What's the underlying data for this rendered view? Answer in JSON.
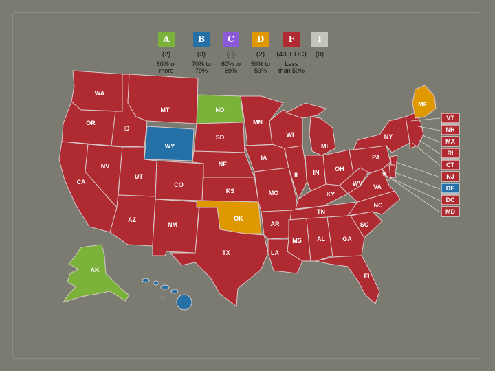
{
  "colors": {
    "A": "#7ab23a",
    "B": "#2670a8",
    "C": "#8a5ad8",
    "D": "#e09800",
    "F": "#b02a32",
    "I": "#c4c4bc",
    "background": "#7b7b72"
  },
  "legend": [
    {
      "grade": "A",
      "count": "(2)",
      "range": "80% or\nmore"
    },
    {
      "grade": "B",
      "count": "(3)",
      "range": "70% to\n79%"
    },
    {
      "grade": "C",
      "count": "(0)",
      "range": "60% to\n69%"
    },
    {
      "grade": "D",
      "count": "(2)",
      "range": "50% to\n59%"
    },
    {
      "grade": "F",
      "count": "(43 + DC)",
      "range": "Less\nthan 50%"
    },
    {
      "grade": "I",
      "count": "(0)",
      "range": ""
    }
  ],
  "states": {
    "WA": "F",
    "OR": "F",
    "CA": "F",
    "ID": "F",
    "NV": "F",
    "MT": "F",
    "WY": "B",
    "UT": "F",
    "AZ": "F",
    "CO": "F",
    "NM": "F",
    "ND": "A",
    "SD": "F",
    "NE": "F",
    "KS": "F",
    "OK": "D",
    "TX": "F",
    "MN": "F",
    "IA": "F",
    "MO": "F",
    "AR": "F",
    "LA": "F",
    "WI": "F",
    "IL": "F",
    "MI": "F",
    "IN": "F",
    "OH": "F",
    "KY": "F",
    "TN": "F",
    "MS": "F",
    "AL": "F",
    "GA": "F",
    "FL": "F",
    "SC": "F",
    "NC": "F",
    "VA": "F",
    "WV": "F",
    "PA": "F",
    "NY": "F",
    "ME": "D",
    "AK": "A",
    "HI": "B"
  },
  "small_states": [
    {
      "abbr": "VT",
      "grade": "F"
    },
    {
      "abbr": "NH",
      "grade": "F"
    },
    {
      "abbr": "MA",
      "grade": "F"
    },
    {
      "abbr": "RI",
      "grade": "F"
    },
    {
      "abbr": "CT",
      "grade": "F"
    },
    {
      "abbr": "NJ",
      "grade": "F"
    },
    {
      "abbr": "DE",
      "grade": "B"
    },
    {
      "abbr": "DC",
      "grade": "F"
    },
    {
      "abbr": "MD",
      "grade": "F"
    }
  ]
}
